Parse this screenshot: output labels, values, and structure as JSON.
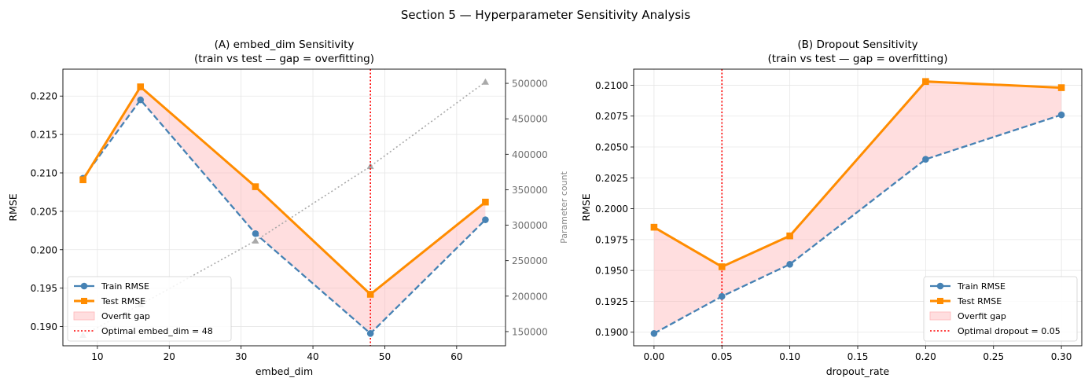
{
  "figure_title": "Section 5 — Hyperparameter Sensitivity Analysis",
  "colors": {
    "train": "#4682b4",
    "test": "#ff8c00",
    "gap_fill": "#ffb6b9",
    "optimal_line": "#ff0000",
    "params": "#a9a9a9",
    "grid": "#e6e6e6"
  },
  "chart_data": [
    {
      "type": "line",
      "title_line1": "(A) embed_dim Sensitivity",
      "title_line2": "(train vs test — gap = overfitting)",
      "xlabel": "embed_dim",
      "ylabel": "RMSE",
      "y2label": "Parameter count",
      "xlim": [
        5.2,
        66.8
      ],
      "ylim": [
        0.1875,
        0.2235
      ],
      "y2lim": [
        130000,
        520000
      ],
      "xticks": [
        10,
        20,
        30,
        40,
        50,
        60
      ],
      "yticks": [
        0.19,
        0.195,
        0.2,
        0.205,
        0.21,
        0.215,
        0.22
      ],
      "y2ticks": [
        150000,
        200000,
        250000,
        300000,
        350000,
        400000,
        450000,
        500000
      ],
      "x": [
        8,
        16,
        32,
        48,
        64
      ],
      "series": [
        {
          "name": "Train RMSE",
          "values": [
            0.2093,
            0.2195,
            0.2021,
            0.1891,
            0.2039
          ]
        },
        {
          "name": "Test RMSE",
          "values": [
            0.2091,
            0.2212,
            0.2082,
            0.1942,
            0.2062
          ]
        }
      ],
      "param_series": {
        "values": [
          145000,
          188000,
          278000,
          383000,
          502000
        ]
      },
      "optimal_x": 48,
      "legend": [
        "Train RMSE",
        "Test RMSE",
        "Overfit gap",
        "Optimal embed_dim = 48"
      ],
      "legend_position": "lower-left",
      "grid": true
    },
    {
      "type": "line",
      "title_line1": "(B) Dropout Sensitivity",
      "title_line2": "(train vs test — gap = overfitting)",
      "xlabel": "dropout_rate",
      "ylabel": "RMSE",
      "xlim": [
        -0.015,
        0.315
      ],
      "ylim": [
        0.1889,
        0.2113
      ],
      "xticks": [
        0.0,
        0.05,
        0.1,
        0.15,
        0.2,
        0.25,
        0.3
      ],
      "yticks": [
        0.19,
        0.1925,
        0.195,
        0.1975,
        0.2,
        0.2025,
        0.205,
        0.2075,
        0.21
      ],
      "x": [
        0.0,
        0.05,
        0.1,
        0.2,
        0.3
      ],
      "series": [
        {
          "name": "Train RMSE",
          "values": [
            0.1899,
            0.1929,
            0.1955,
            0.204,
            0.2076
          ]
        },
        {
          "name": "Test RMSE",
          "values": [
            0.1985,
            0.1953,
            0.1978,
            0.2103,
            0.2098
          ]
        }
      ],
      "optimal_x": 0.05,
      "legend": [
        "Train RMSE",
        "Test RMSE",
        "Overfit gap",
        "Optimal dropout = 0.05"
      ],
      "legend_position": "lower-right",
      "grid": true
    }
  ]
}
